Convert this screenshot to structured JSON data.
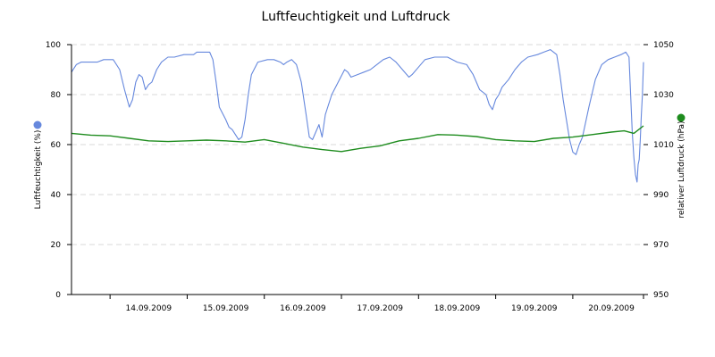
{
  "chart_data": {
    "type": "line",
    "title": "Luftfeuchtigkeit und Luftdruck",
    "x": {
      "tick_labels": [
        "14.09.2009",
        "15.09.2009",
        "16.09.2009",
        "17.09.2009",
        "18.09.2009",
        "19.09.2009",
        "20.09.2009"
      ],
      "range": [
        "2009-09-13T12:00",
        "2009-09-20T22:00"
      ]
    },
    "y_left": {
      "label": "Luftfeuchtigkeit (%)",
      "range": [
        0,
        100
      ],
      "ticks": [
        "0",
        "20",
        "40",
        "60",
        "80",
        "100"
      ],
      "grid": true
    },
    "y_right": {
      "label": "relativer Luftdruck (hPa)",
      "range": [
        950,
        1050
      ],
      "ticks": [
        "950",
        "970",
        "990",
        "1010",
        "1030",
        "1050"
      ]
    },
    "series": [
      {
        "axis": "left",
        "color": "#6688dd",
        "points": [
          [
            "2009-09-13T12:00",
            89
          ],
          [
            "2009-09-13T13:30",
            92
          ],
          [
            "2009-09-13T15:00",
            93
          ],
          [
            "2009-09-13T20:00",
            93
          ],
          [
            "2009-09-13T22:00",
            94
          ],
          [
            "2009-09-14T01:00",
            94
          ],
          [
            "2009-09-14T03:00",
            90
          ],
          [
            "2009-09-14T04:30",
            82
          ],
          [
            "2009-09-14T06:00",
            75
          ],
          [
            "2009-09-14T07:00",
            78
          ],
          [
            "2009-09-14T08:00",
            85
          ],
          [
            "2009-09-14T09:00",
            88
          ],
          [
            "2009-09-14T10:00",
            87
          ],
          [
            "2009-09-14T11:00",
            82
          ],
          [
            "2009-09-14T12:00",
            84
          ],
          [
            "2009-09-14T13:00",
            85
          ],
          [
            "2009-09-14T14:30",
            90
          ],
          [
            "2009-09-14T16:00",
            93
          ],
          [
            "2009-09-14T18:00",
            95
          ],
          [
            "2009-09-14T20:00",
            95
          ],
          [
            "2009-09-14T23:00",
            96
          ],
          [
            "2009-09-15T02:00",
            96
          ],
          [
            "2009-09-15T03:00",
            97
          ],
          [
            "2009-09-15T07:00",
            97
          ],
          [
            "2009-09-15T08:00",
            94
          ],
          [
            "2009-09-15T09:00",
            85
          ],
          [
            "2009-09-15T10:00",
            75
          ],
          [
            "2009-09-15T12:00",
            70
          ],
          [
            "2009-09-15T13:00",
            67
          ],
          [
            "2009-09-15T14:00",
            66
          ],
          [
            "2009-09-15T15:00",
            64
          ],
          [
            "2009-09-15T16:00",
            62
          ],
          [
            "2009-09-15T17:00",
            63
          ],
          [
            "2009-09-15T18:00",
            70
          ],
          [
            "2009-09-15T19:00",
            80
          ],
          [
            "2009-09-15T20:00",
            88
          ],
          [
            "2009-09-15T22:00",
            93
          ],
          [
            "2009-09-16T01:00",
            94
          ],
          [
            "2009-09-16T03:00",
            94
          ],
          [
            "2009-09-16T05:00",
            93
          ],
          [
            "2009-09-16T06:00",
            92
          ],
          [
            "2009-09-16T07:00",
            93
          ],
          [
            "2009-09-16T08:30",
            94
          ],
          [
            "2009-09-16T10:00",
            92
          ],
          [
            "2009-09-16T11:30",
            85
          ],
          [
            "2009-09-16T13:00",
            72
          ],
          [
            "2009-09-16T14:00",
            63
          ],
          [
            "2009-09-16T15:00",
            62
          ],
          [
            "2009-09-16T16:00",
            65
          ],
          [
            "2009-09-16T17:00",
            68
          ],
          [
            "2009-09-16T18:00",
            63
          ],
          [
            "2009-09-16T19:00",
            72
          ],
          [
            "2009-09-16T21:00",
            80
          ],
          [
            "2009-09-16T23:00",
            85
          ],
          [
            "2009-09-17T01:00",
            90
          ],
          [
            "2009-09-17T02:00",
            89
          ],
          [
            "2009-09-17T03:00",
            87
          ],
          [
            "2009-09-17T05:00",
            88
          ],
          [
            "2009-09-17T07:00",
            89
          ],
          [
            "2009-09-17T09:00",
            90
          ],
          [
            "2009-09-17T11:00",
            92
          ],
          [
            "2009-09-17T13:00",
            94
          ],
          [
            "2009-09-17T15:00",
            95
          ],
          [
            "2009-09-17T17:00",
            93
          ],
          [
            "2009-09-17T19:00",
            90
          ],
          [
            "2009-09-17T21:00",
            87
          ],
          [
            "2009-09-17T22:00",
            88
          ],
          [
            "2009-09-18T00:00",
            91
          ],
          [
            "2009-09-18T02:00",
            94
          ],
          [
            "2009-09-18T05:00",
            95
          ],
          [
            "2009-09-18T09:00",
            95
          ],
          [
            "2009-09-18T12:00",
            93
          ],
          [
            "2009-09-18T15:00",
            92
          ],
          [
            "2009-09-18T17:00",
            88
          ],
          [
            "2009-09-18T19:00",
            82
          ],
          [
            "2009-09-18T21:00",
            80
          ],
          [
            "2009-09-18T22:00",
            76
          ],
          [
            "2009-09-18T23:00",
            74
          ],
          [
            "2009-09-19T00:00",
            78
          ],
          [
            "2009-09-19T01:00",
            80
          ],
          [
            "2009-09-19T02:00",
            83
          ],
          [
            "2009-09-19T04:00",
            86
          ],
          [
            "2009-09-19T06:00",
            90
          ],
          [
            "2009-09-19T08:00",
            93
          ],
          [
            "2009-09-19T10:00",
            95
          ],
          [
            "2009-09-19T13:00",
            96
          ],
          [
            "2009-09-19T15:00",
            97
          ],
          [
            "2009-09-19T17:00",
            98
          ],
          [
            "2009-09-19T19:00",
            96
          ],
          [
            "2009-09-19T20:00",
            88
          ],
          [
            "2009-09-19T21:00",
            78
          ],
          [
            "2009-09-19T22:00",
            70
          ],
          [
            "2009-09-19T23:00",
            62
          ],
          [
            "2009-09-20T00:00",
            57
          ],
          [
            "2009-09-20T01:00",
            56
          ],
          [
            "2009-09-20T02:00",
            60
          ],
          [
            "2009-09-20T03:00",
            63
          ],
          [
            "2009-09-20T05:00",
            75
          ],
          [
            "2009-09-20T07:00",
            86
          ],
          [
            "2009-09-20T09:00",
            92
          ],
          [
            "2009-09-20T11:00",
            94
          ],
          [
            "2009-09-20T13:00",
            95
          ],
          [
            "2009-09-20T15:00",
            96
          ],
          [
            "2009-09-20T16:30",
            97
          ],
          [
            "2009-09-20T17:30",
            95
          ],
          [
            "2009-09-20T18:00",
            80
          ],
          [
            "2009-09-20T18:30",
            65
          ],
          [
            "2009-09-20T19:00",
            55
          ],
          [
            "2009-09-20T19:30",
            48
          ],
          [
            "2009-09-20T20:00",
            45
          ],
          [
            "2009-09-20T20:20",
            52
          ],
          [
            "2009-09-20T20:40",
            54
          ],
          [
            "2009-09-20T21:00",
            62
          ],
          [
            "2009-09-20T21:20",
            72
          ],
          [
            "2009-09-20T21:40",
            80
          ],
          [
            "2009-09-20T22:00",
            93
          ]
        ]
      },
      {
        "axis": "right",
        "color": "#1e8c1e",
        "points": [
          [
            "2009-09-13T12:00",
            1014.5
          ],
          [
            "2009-09-13T18:00",
            1013.8
          ],
          [
            "2009-09-14T00:00",
            1013.5
          ],
          [
            "2009-09-14T06:00",
            1012.5
          ],
          [
            "2009-09-14T12:00",
            1011.5
          ],
          [
            "2009-09-14T18:00",
            1011.2
          ],
          [
            "2009-09-15T00:00",
            1011.5
          ],
          [
            "2009-09-15T06:00",
            1011.8
          ],
          [
            "2009-09-15T12:00",
            1011.5
          ],
          [
            "2009-09-15T18:00",
            1011.0
          ],
          [
            "2009-09-16T00:00",
            1012.0
          ],
          [
            "2009-09-16T06:00",
            1010.5
          ],
          [
            "2009-09-16T12:00",
            1009.0
          ],
          [
            "2009-09-16T18:00",
            1008.0
          ],
          [
            "2009-09-17T00:00",
            1007.2
          ],
          [
            "2009-09-17T06:00",
            1008.5
          ],
          [
            "2009-09-17T12:00",
            1009.5
          ],
          [
            "2009-09-17T18:00",
            1011.5
          ],
          [
            "2009-09-18T00:00",
            1012.5
          ],
          [
            "2009-09-18T06:00",
            1014.0
          ],
          [
            "2009-09-18T12:00",
            1013.8
          ],
          [
            "2009-09-18T18:00",
            1013.2
          ],
          [
            "2009-09-19T00:00",
            1012.0
          ],
          [
            "2009-09-19T06:00",
            1011.5
          ],
          [
            "2009-09-19T12:00",
            1011.2
          ],
          [
            "2009-09-19T18:00",
            1012.5
          ],
          [
            "2009-09-20T00:00",
            1013.0
          ],
          [
            "2009-09-20T06:00",
            1014.0
          ],
          [
            "2009-09-20T12:00",
            1015.0
          ],
          [
            "2009-09-20T16:00",
            1015.5
          ],
          [
            "2009-09-20T19:00",
            1014.5
          ],
          [
            "2009-09-20T22:00",
            1017.5
          ]
        ]
      }
    ],
    "legend": "markers beside axis titles"
  }
}
